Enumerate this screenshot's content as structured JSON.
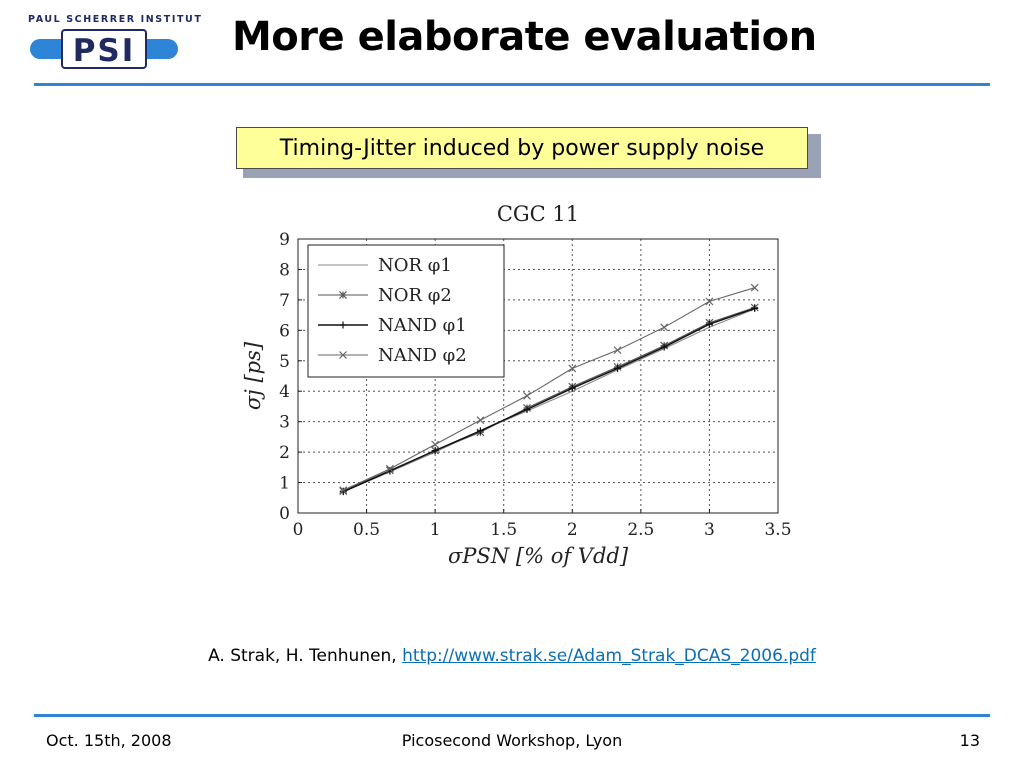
{
  "header": {
    "logo_caption": "PAUL SCHERRER INSTITUT",
    "logo_text": "PSI",
    "title": "More elaborate evaluation",
    "accent_color": "#2e84d6"
  },
  "callout": {
    "text": "Timing-Jitter induced by power supply noise",
    "background": "#ffff99"
  },
  "chart_data": {
    "type": "line",
    "title": "CGC 11",
    "xlabel": "σPSN [% of Vdd]",
    "ylabel": "σj [ps]",
    "xlim": [
      0,
      3.5
    ],
    "ylim": [
      0,
      9
    ],
    "xticks": [
      "0",
      "0.5",
      "1",
      "1.5",
      "2",
      "2.5",
      "3",
      "3.5"
    ],
    "yticks": [
      "0",
      "1",
      "2",
      "3",
      "4",
      "5",
      "6",
      "7",
      "8",
      "9"
    ],
    "grid": true,
    "legend_position": "top-left",
    "x": [
      0.33,
      0.67,
      1.0,
      1.33,
      1.67,
      2.0,
      2.33,
      2.67,
      3.0,
      3.33
    ],
    "series": [
      {
        "name": "NOR φ1",
        "marker": "none",
        "color": "#8a8a8a",
        "values": [
          0.7,
          1.35,
          2.0,
          2.7,
          3.35,
          4.0,
          4.7,
          5.4,
          6.1,
          6.7
        ]
      },
      {
        "name": "NOR φ2",
        "marker": "star",
        "color": "#555555",
        "values": [
          0.72,
          1.4,
          2.05,
          2.65,
          3.45,
          4.15,
          4.8,
          5.5,
          6.25,
          6.75
        ]
      },
      {
        "name": "NAND φ1",
        "marker": "plus",
        "color": "#111111",
        "values": [
          0.7,
          1.38,
          2.05,
          2.7,
          3.4,
          4.1,
          4.75,
          5.45,
          6.2,
          6.72
        ]
      },
      {
        "name": "NAND φ2",
        "marker": "x",
        "color": "#666666",
        "values": [
          0.75,
          1.45,
          2.25,
          3.05,
          3.85,
          4.75,
          5.35,
          6.1,
          6.95,
          7.4
        ]
      }
    ]
  },
  "citation": {
    "authors": "A. Strak, H. Tenhunen, ",
    "link_text": "http://www.strak.se/Adam_Strak_DCAS_2006.pdf"
  },
  "footer": {
    "date": "Oct. 15th, 2008",
    "event": "Picosecond Workshop, Lyon",
    "page": "13"
  }
}
